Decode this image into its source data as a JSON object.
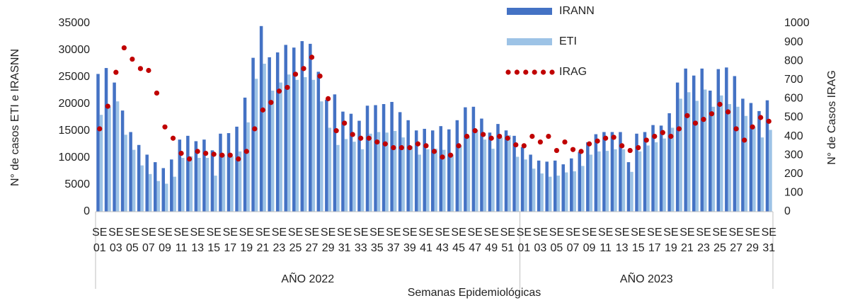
{
  "chart_data": {
    "type": "bar",
    "x_title": "Semanas Epidemiológicas",
    "y_title": "N° de casos ETI e IRASNN",
    "y2_title": "N° de Casos IRAG",
    "groups": [
      {
        "label": "AÑO 2022",
        "categories": [
          "SE 01",
          null,
          "SE 03",
          null,
          "SE 05",
          null,
          "SE 07",
          null,
          "SE 09",
          null,
          "SE 11",
          null,
          "SE 13",
          null,
          "SE 15",
          null,
          "SE 17",
          null,
          "SE 19",
          null,
          "SE 21",
          null,
          "SE 23",
          null,
          "SE 25",
          null,
          "SE 27",
          null,
          "SE 29",
          null,
          "SE 31",
          null,
          "SE 33",
          null,
          "SE 35",
          null,
          "SE 37",
          null,
          "SE 39",
          null,
          "SE 41",
          null,
          "SE 43",
          null,
          "SE 45",
          null,
          "SE 47",
          null,
          "SE 49",
          null,
          "SE 51",
          null
        ]
      },
      {
        "label": "AÑO 2023",
        "categories": [
          "SE 01",
          null,
          "SE 03",
          null,
          "SE 05",
          null,
          "SE 07",
          null,
          "SE 09",
          null,
          "SE 11",
          null,
          "SE 13",
          null,
          "SE 15",
          null,
          "SE 17",
          null,
          "SE 19",
          null,
          "SE 21",
          null,
          "SE 23",
          null,
          "SE 25",
          null,
          "SE 27",
          null,
          "SE 29",
          null,
          "SE 31"
        ]
      }
    ],
    "series": [
      {
        "name": "IRANN",
        "type": "bar",
        "color": "#4472c4",
        "values": [
          25600,
          26700,
          24000,
          18800,
          14800,
          12400,
          10600,
          9200,
          8100,
          9700,
          13400,
          14100,
          13100,
          13400,
          11400,
          14500,
          14600,
          15800,
          21200,
          28600,
          34500,
          28700,
          29600,
          31000,
          30500,
          31700,
          31200,
          26000,
          20800,
          21800,
          18600,
          18200,
          16900,
          19700,
          19800,
          20000,
          20400,
          18500,
          17000,
          15100,
          15400,
          15100,
          15900,
          15300,
          17000,
          19400,
          19500,
          17300,
          14700,
          16300,
          15100,
          14100,
          12000,
          10600,
          9500,
          9300,
          9500,
          8800,
          9900,
          11100,
          12900,
          14400,
          14800,
          14800,
          14800,
          9200,
          14500,
          14800,
          16100,
          16000,
          18300,
          24000,
          26600,
          25300,
          26600,
          22500,
          26500,
          26800,
          25200,
          21000,
          20200,
          18700,
          20700
        ]
      },
      {
        "name": "ETI",
        "type": "bar",
        "color": "#9dc3e6",
        "values": [
          18000,
          19500,
          20500,
          14300,
          11500,
          8600,
          7000,
          5700,
          5200,
          6500,
          10000,
          10300,
          10000,
          10000,
          6700,
          10600,
          10300,
          11200,
          16600,
          24700,
          27500,
          22500,
          24000,
          25500,
          24500,
          25000,
          24500,
          20500,
          15600,
          12400,
          13500,
          13000,
          11600,
          14500,
          14800,
          14700,
          15000,
          13800,
          12200,
          10600,
          11600,
          11700,
          11500,
          10600,
          12300,
          14000,
          15200,
          13400,
          11700,
          13800,
          14200,
          10200,
          9700,
          8000,
          7100,
          6500,
          6700,
          7300,
          7500,
          8500,
          10600,
          11200,
          11300,
          11600,
          11600,
          7400,
          11200,
          12300,
          12900,
          13600,
          15600,
          21000,
          22200,
          20600,
          22700,
          19500,
          21600,
          20000,
          19500,
          17800,
          15700,
          13800,
          15200
        ]
      },
      {
        "name": "IRAG",
        "type": "dot",
        "axis": "y2",
        "color": "#c00000",
        "values": [
          440,
          560,
          740,
          870,
          810,
          760,
          750,
          630,
          450,
          390,
          310,
          280,
          320,
          310,
          305,
          300,
          300,
          280,
          320,
          440,
          540,
          580,
          640,
          660,
          730,
          760,
          820,
          720,
          600,
          430,
          470,
          410,
          390,
          390,
          370,
          360,
          340,
          340,
          340,
          360,
          350,
          320,
          290,
          300,
          350,
          400,
          430,
          410,
          390,
          400,
          390,
          355,
          350,
          400,
          370,
          400,
          325,
          370,
          330,
          320,
          360,
          375,
          390,
          395,
          350,
          325,
          340,
          380,
          400,
          420,
          400,
          440,
          510,
          470,
          490,
          520,
          570,
          530,
          440,
          380,
          450,
          500,
          480
        ]
      }
    ],
    "ylim": [
      0,
      35000
    ],
    "yticks": [
      0,
      5000,
      10000,
      15000,
      20000,
      25000,
      30000,
      35000
    ],
    "y2lim": [
      0,
      1000
    ],
    "y2ticks": [
      0,
      100,
      200,
      300,
      400,
      500,
      600,
      700,
      800,
      900,
      1000
    ],
    "legend": "top"
  }
}
